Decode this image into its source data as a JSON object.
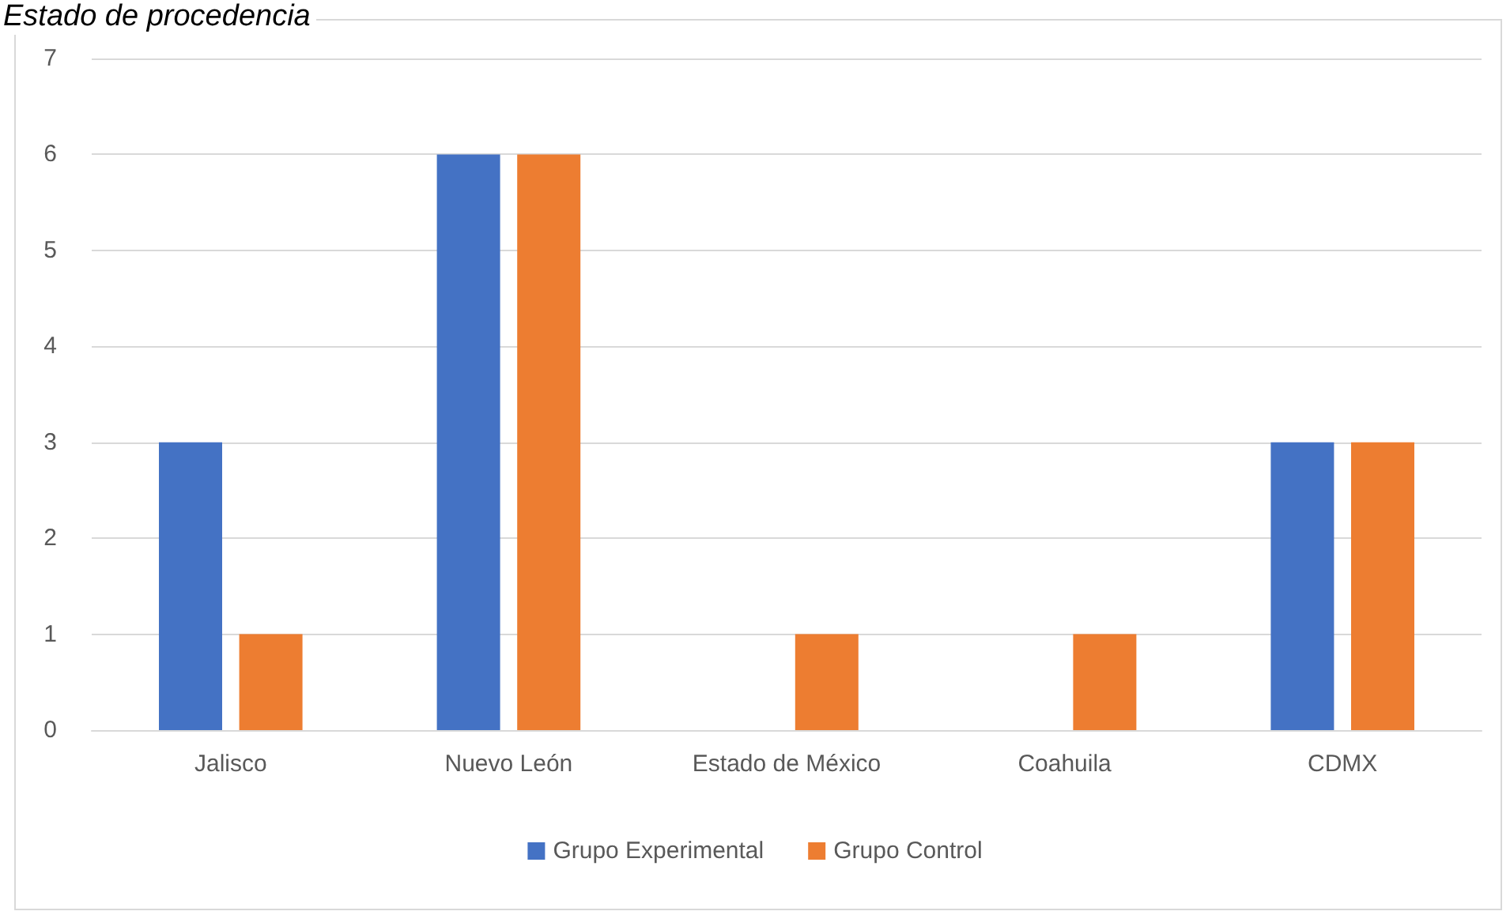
{
  "chart_data": {
    "type": "bar",
    "title": "Estado de procedencia",
    "categories": [
      "Jalisco",
      "Nuevo León",
      "Estado de México",
      "Coahuila",
      "CDMX"
    ],
    "series": [
      {
        "name": "Grupo Experimental",
        "color": "#4472c4",
        "values": [
          3,
          6,
          0,
          0,
          3
        ]
      },
      {
        "name": "Grupo Control",
        "color": "#ed7d31",
        "values": [
          1,
          6,
          1,
          1,
          3
        ]
      }
    ],
    "ylim": [
      0,
      7
    ],
    "yticks": [
      0,
      1,
      2,
      3,
      4,
      5,
      6,
      7
    ],
    "grid": "y",
    "legend": "bottom"
  }
}
